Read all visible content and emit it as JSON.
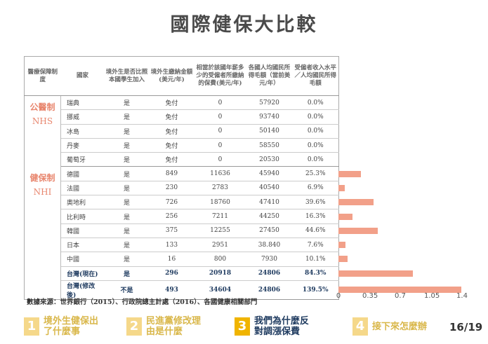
{
  "title": "國際健保大比較",
  "table": {
    "headers": [
      "醫療保障制度",
      "國家",
      "境外生是否比照本國學生加入",
      "境外生繳納金額(美元/年)",
      "相當於該國年薪多少的受僱者所繳納的保費(美元/年)",
      "各國人均國民所得毛額（當前美元/年）",
      "受僱者收入水平／人均國民所得毛額"
    ],
    "groups": [
      {
        "label": "公醫制",
        "sub": "NHS",
        "rows": [
          [
            "瑞典",
            "是",
            "免付",
            "0",
            "57920",
            "0.0%"
          ],
          [
            "挪威",
            "是",
            "免付",
            "0",
            "93740",
            "0.0%"
          ],
          [
            "冰島",
            "是",
            "免付",
            "0",
            "50140",
            "0.0%"
          ],
          [
            "丹麥",
            "是",
            "免付",
            "0",
            "58550",
            "0.0%"
          ],
          [
            "葡萄牙",
            "是",
            "免付",
            "0",
            "20530",
            "0.0%"
          ]
        ]
      },
      {
        "label": "健保制",
        "sub": "NHI",
        "rows": [
          [
            "德國",
            "是",
            "849",
            "11636",
            "45940",
            "25.3%"
          ],
          [
            "法國",
            "是",
            "230",
            "2783",
            "40540",
            "6.9%"
          ],
          [
            "奧地利",
            "是",
            "726",
            "18760",
            "47410",
            "39.6%"
          ],
          [
            "比利時",
            "是",
            "256",
            "7211",
            "44250",
            "16.3%"
          ],
          [
            "韓國",
            "是",
            "375",
            "12255",
            "27450",
            "44.6%"
          ],
          [
            "日本",
            "是",
            "133",
            "2951",
            "38.840",
            "7.6%"
          ],
          [
            "中國",
            "是",
            "16",
            "800",
            "7930",
            "10.1%"
          ],
          [
            "台灣(現在)",
            "是",
            "296",
            "20918",
            "24806",
            "84.3%"
          ],
          [
            "台灣(修改後)",
            "不是",
            "493",
            "34604",
            "24806",
            "139.5%"
          ]
        ]
      }
    ]
  },
  "chart_data": {
    "type": "bar",
    "orientation": "horizontal",
    "categories": [
      "瑞典",
      "挪威",
      "冰島",
      "丹麥",
      "葡萄牙",
      "德國",
      "法國",
      "奧地利",
      "比利時",
      "韓國",
      "日本",
      "中國",
      "台灣(現在)",
      "台灣(修改後)"
    ],
    "values": [
      0.0,
      0.0,
      0.0,
      0.0,
      0.0,
      0.253,
      0.069,
      0.396,
      0.163,
      0.446,
      0.076,
      0.101,
      0.843,
      1.395
    ],
    "xlim": [
      0,
      1.4
    ],
    "ticks": [
      "0",
      "0.35",
      "0.7",
      "1.05",
      "1.4"
    ],
    "color": "#f2a089"
  },
  "source": "數據來源：世界銀行（2015）、行政院總主計處（2016）、各國健康相關部門",
  "nav": [
    {
      "num": "1",
      "text": "境外生健保出了什麼事",
      "numColor": "#f5d88a",
      "textColor": "#d9b74a"
    },
    {
      "num": "2",
      "text": "民進黨修改理由是什麼",
      "numColor": "#f5d88a",
      "textColor": "#d9b74a"
    },
    {
      "num": "3",
      "text": "我們為什麼反對調漲保費",
      "numColor": "#f0b400",
      "textColor": "#1e3a5f"
    },
    {
      "num": "4",
      "text": "接下來怎麼辦",
      "numColor": "#f5d88a",
      "textColor": "#d9b74a"
    }
  ],
  "page": "16/19"
}
